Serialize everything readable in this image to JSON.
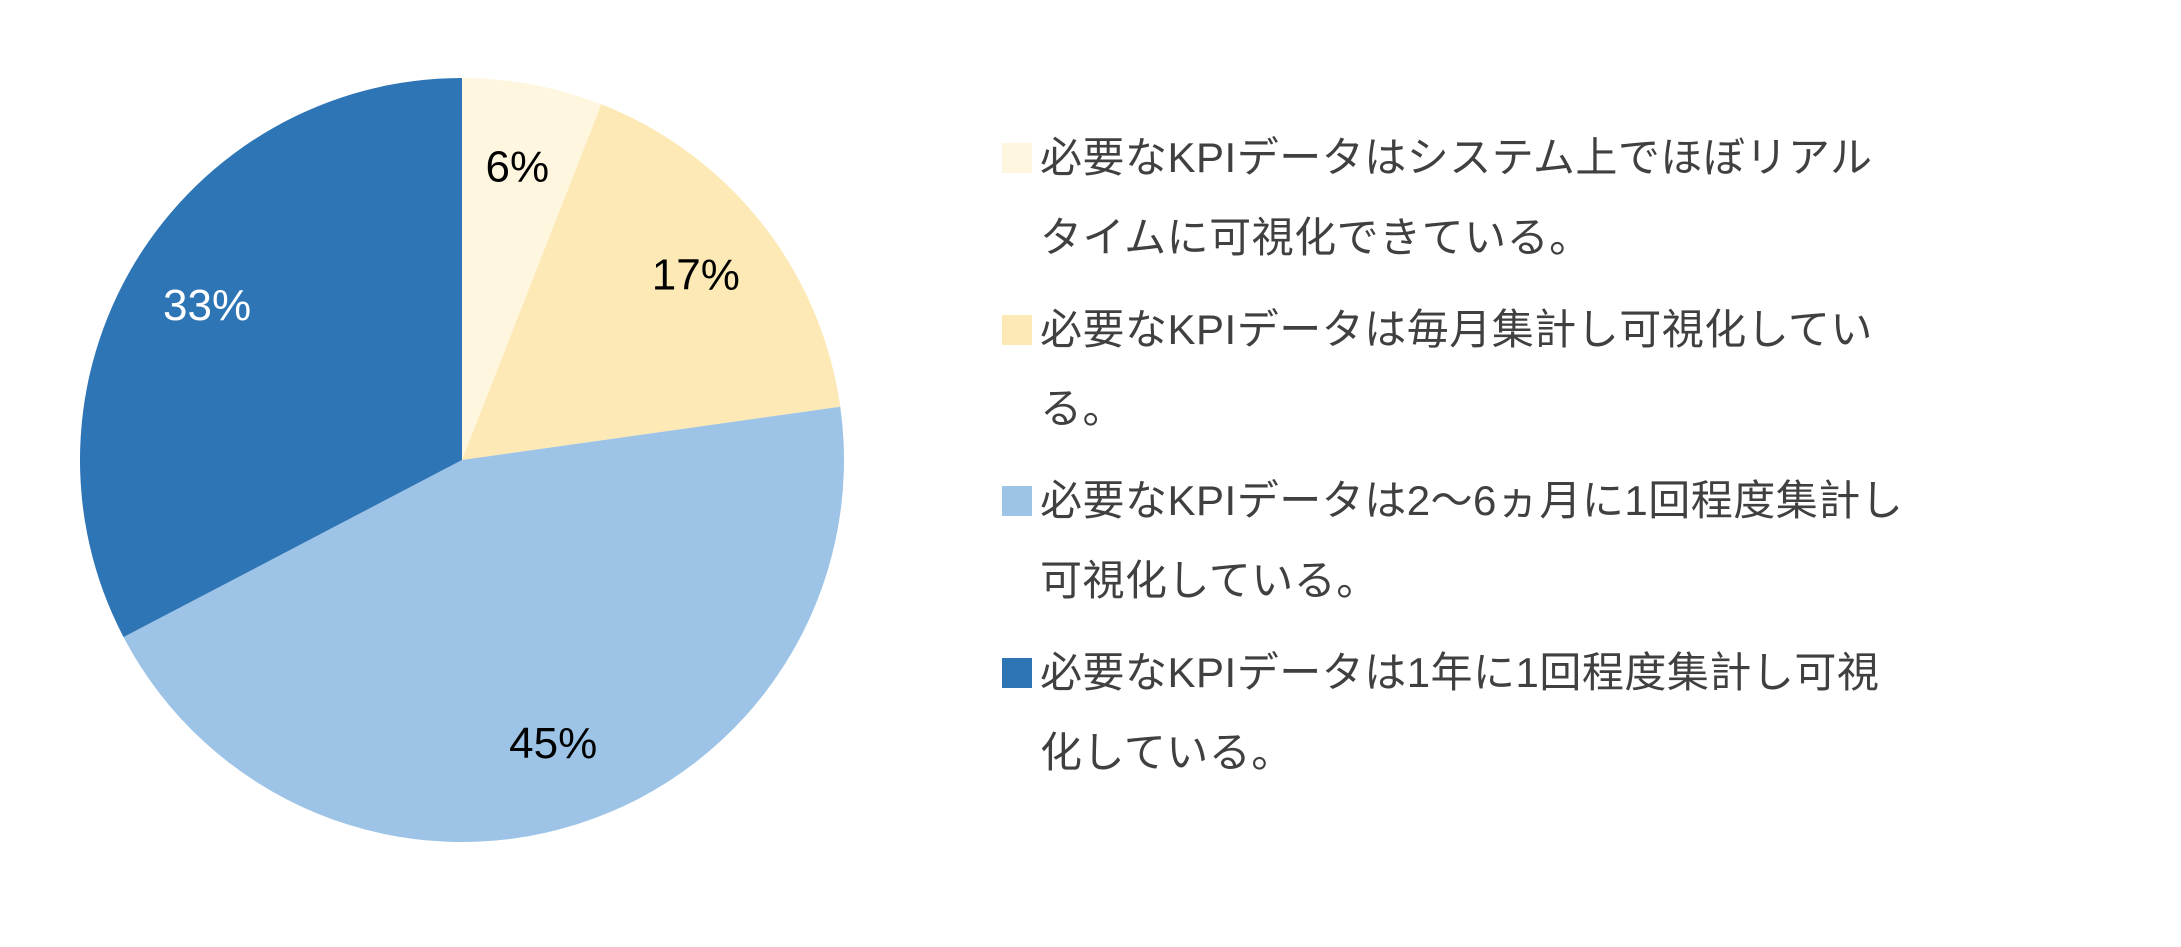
{
  "page": {
    "background_color": "#FFFFFF"
  },
  "chart_data": {
    "type": "pie",
    "title": "",
    "legend_position": "right",
    "start_angle_deg": 0,
    "direction": "clockwise",
    "items": [
      {
        "label": "必要なKPIデータはシステム上でほぼリアルタイムに可視化できている。",
        "value": 6,
        "value_label": "6%",
        "color": "#FFF6DF",
        "value_label_color": "#000000"
      },
      {
        "label": "必要なKPIデータは毎月集計し可視化している。",
        "value": 17,
        "value_label": "17%",
        "color": "#FDE9B5",
        "value_label_color": "#000000"
      },
      {
        "label": "必要なKPIデータは2〜6ヵ月に1回程度集計し可視化している。",
        "value": 45,
        "value_label": "45%",
        "color": "#9DC3E6",
        "value_label_color": "#000000"
      },
      {
        "label": "必要なKPIデータは1年に1回程度集計し可視化している。",
        "value": 33,
        "value_label": "33%",
        "color": "#2E75B6",
        "value_label_color": "#FFFFFF"
      }
    ]
  }
}
